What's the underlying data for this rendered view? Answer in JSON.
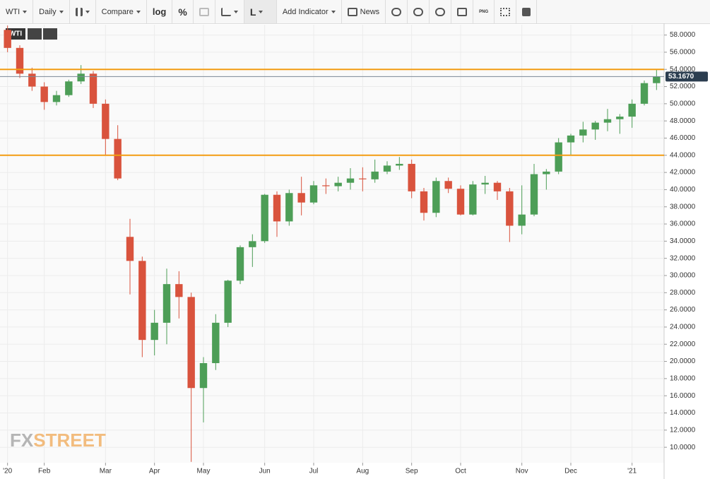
{
  "toolbar": {
    "symbol": "WTI",
    "interval": "Daily",
    "compare": "Compare",
    "log": "log",
    "percent": "%",
    "line_tool": "L",
    "add_indicator": "Add Indicator",
    "news": "News",
    "export": "PNG"
  },
  "watermark": [
    "FX",
    "STREET"
  ],
  "chart_data": {
    "type": "candlestick",
    "title": "WTI",
    "categories": [
      "'20",
      null,
      null,
      "Feb",
      null,
      null,
      null,
      null,
      "Mar",
      null,
      null,
      null,
      "Apr",
      null,
      null,
      null,
      "May",
      null,
      null,
      null,
      null,
      "Jun",
      null,
      null,
      null,
      "Jul",
      null,
      null,
      null,
      "Aug",
      null,
      null,
      null,
      "Sep",
      null,
      null,
      null,
      "Oct",
      null,
      null,
      null,
      null,
      "Nov",
      null,
      null,
      null,
      "Dec",
      null,
      null,
      null,
      null,
      "'21",
      null,
      null
    ],
    "open": [
      58.6,
      56.5,
      53.5,
      52.0,
      50.2,
      51.0,
      52.6,
      53.5,
      50.0,
      45.9,
      34.5,
      31.7,
      22.5,
      24.5,
      29.0,
      27.5,
      16.9,
      19.8,
      24.5,
      29.4,
      33.3,
      34.0,
      39.4,
      36.3,
      39.6,
      38.5,
      40.5,
      40.4,
      40.8,
      41.3,
      41.2,
      42.1,
      42.8,
      43.0,
      39.8,
      37.3,
      41.0,
      40.1,
      37.1,
      40.6,
      40.8,
      39.8,
      35.8,
      37.1,
      41.8,
      42.1,
      45.5,
      46.3,
      47.0,
      47.8,
      48.2,
      48.5,
      50.0,
      52.4
    ],
    "high": [
      59.1,
      56.8,
      54.2,
      52.5,
      51.5,
      52.8,
      54.5,
      53.8,
      50.5,
      47.5,
      36.6,
      32.2,
      26.0,
      30.8,
      30.5,
      28.0,
      20.5,
      25.5,
      29.5,
      33.5,
      34.8,
      39.5,
      39.8,
      40.0,
      41.5,
      41.0,
      41.3,
      41.5,
      42.5,
      42.6,
      43.5,
      43.3,
      43.8,
      43.5,
      40.2,
      41.4,
      41.4,
      40.5,
      41.0,
      41.6,
      41.0,
      40.2,
      40.5,
      43.0,
      42.4,
      46.0,
      46.5,
      47.9,
      48.0,
      49.4,
      48.8,
      50.5,
      52.7,
      54.0
    ],
    "low": [
      56.0,
      53.0,
      51.5,
      49.3,
      49.8,
      50.8,
      52.3,
      49.5,
      44.0,
      41.1,
      27.8,
      20.5,
      20.7,
      22.0,
      25.0,
      8.3,
      12.9,
      19.0,
      24.0,
      29.0,
      31.0,
      33.8,
      34.5,
      35.8,
      37.0,
      38.3,
      39.5,
      39.8,
      40.0,
      39.8,
      40.8,
      41.8,
      42.3,
      39.0,
      36.4,
      36.8,
      39.6,
      37.0,
      37.0,
      39.5,
      38.8,
      33.9,
      34.8,
      36.9,
      40.0,
      41.8,
      44.0,
      45.5,
      45.8,
      46.8,
      46.5,
      47.2,
      49.8,
      51.6
    ],
    "close": [
      56.5,
      53.5,
      52.0,
      50.2,
      51.0,
      52.6,
      53.5,
      50.0,
      45.9,
      41.3,
      31.7,
      22.5,
      24.5,
      29.0,
      27.5,
      16.9,
      19.8,
      24.5,
      29.4,
      33.3,
      34.0,
      39.4,
      36.3,
      39.6,
      38.5,
      40.5,
      40.4,
      40.8,
      41.3,
      41.2,
      42.1,
      42.8,
      43.0,
      39.8,
      37.3,
      41.0,
      40.1,
      37.1,
      40.6,
      40.8,
      39.8,
      35.8,
      37.1,
      41.8,
      42.1,
      45.5,
      46.3,
      47.0,
      47.8,
      48.2,
      48.5,
      50.0,
      52.4,
      53.167
    ],
    "up_color": "#4d9e57",
    "down_color": "#d9533d",
    "levels": [
      54,
      44
    ],
    "level_color": "#f39c12",
    "last_price": {
      "value": 53.167,
      "label": "53.1670"
    },
    "ylim": [
      8.2,
      59.2
    ],
    "yticks": [
      {
        "value": 10,
        "label": "10.0000"
      },
      {
        "value": 12,
        "label": "12.0000"
      },
      {
        "value": 14,
        "label": "14.0000"
      },
      {
        "value": 16,
        "label": "16.0000"
      },
      {
        "value": 18,
        "label": "18.0000"
      },
      {
        "value": 20,
        "label": "20.0000"
      },
      {
        "value": 22,
        "label": "22.0000"
      },
      {
        "value": 24,
        "label": "24.0000"
      },
      {
        "value": 26,
        "label": "26.0000"
      },
      {
        "value": 28,
        "label": "28.0000"
      },
      {
        "value": 30,
        "label": "30.0000"
      },
      {
        "value": 32,
        "label": "32.0000"
      },
      {
        "value": 34,
        "label": "34.0000"
      },
      {
        "value": 36,
        "label": "36.0000"
      },
      {
        "value": 38,
        "label": "38.0000"
      },
      {
        "value": 40,
        "label": "40.0000"
      },
      {
        "value": 42,
        "label": "42.0000"
      },
      {
        "value": 44,
        "label": "44.0000"
      },
      {
        "value": 46,
        "label": "46.0000"
      },
      {
        "value": 48,
        "label": "48.0000"
      },
      {
        "value": 50,
        "label": "50.0000"
      },
      {
        "value": 52,
        "label": "52.0000"
      },
      {
        "value": 54,
        "label": "54.0000"
      },
      {
        "value": 56,
        "label": "56.0000"
      },
      {
        "value": 58,
        "label": "58.0000"
      }
    ],
    "grid": true
  }
}
